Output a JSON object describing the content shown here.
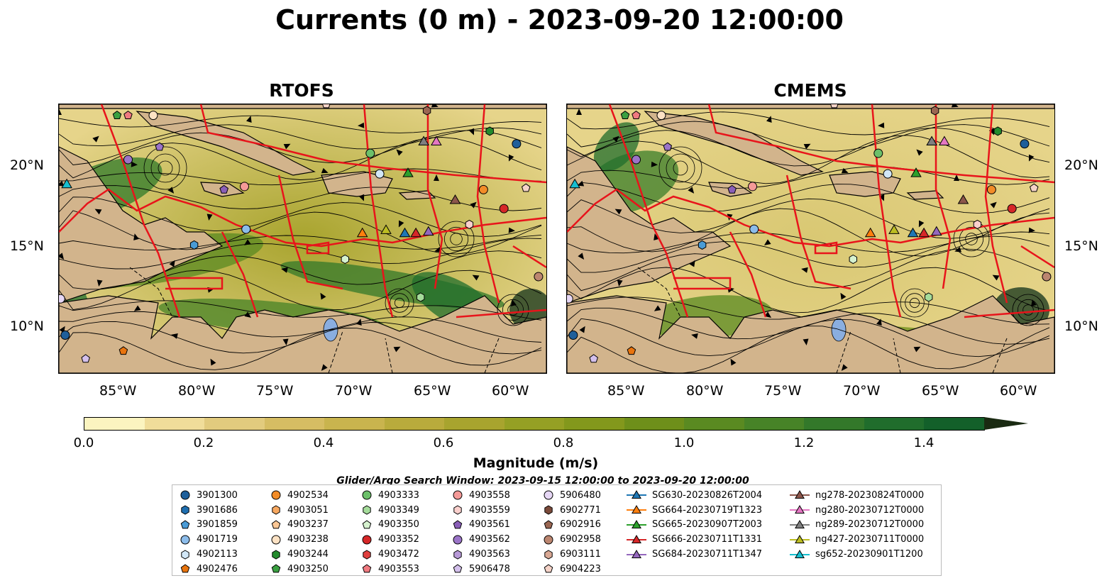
{
  "title": "Currents (0 m) - 2023-09-20 12:00:00",
  "panels": [
    {
      "title": "RTOFS"
    },
    {
      "title": "CMEMS"
    }
  ],
  "axes": {
    "lon_ticks": [
      "85°W",
      "80°W",
      "75°W",
      "70°W",
      "65°W",
      "60°W"
    ],
    "lat_ticks": [
      "20°N",
      "15°N",
      "10°N"
    ]
  },
  "colorbar": {
    "label": "Magnitude (m/s)",
    "ticks": [
      "0.0",
      "0.2",
      "0.4",
      "0.6",
      "0.8",
      "1.0",
      "1.2",
      "1.4"
    ],
    "range": [
      0,
      1.5
    ],
    "extend": "max",
    "colors": [
      "#fbf4c0",
      "#f0dd9a",
      "#e2cb7e",
      "#d6bd63",
      "#c9b44e",
      "#b9ab3c",
      "#a8a42e",
      "#95a024",
      "#83981c",
      "#6e8f1a",
      "#5a8a21",
      "#478327",
      "#33782a",
      "#206d2c",
      "#13602a",
      "#114f25",
      "#103f1f",
      "#12321a",
      "#1a2a12"
    ]
  },
  "search_window": "Glider/Argo Search Window: 2023-09-15 12:00:00 to 2023-09-20 12:00:00",
  "legend": {
    "columns": [
      [
        {
          "label": "3901300",
          "marker": "circle",
          "color": "#1f5f9a"
        },
        {
          "label": "3901686",
          "marker": "hexagon",
          "color": "#1f6fb0"
        },
        {
          "label": "3901859",
          "marker": "pentagon",
          "color": "#4a9bd6"
        },
        {
          "label": "4901719",
          "marker": "circle",
          "color": "#8cbcea"
        },
        {
          "label": "4902113",
          "marker": "hexagon",
          "color": "#d2e7f7"
        },
        {
          "label": "4902476",
          "marker": "pentagon",
          "color": "#e8740e"
        }
      ],
      [
        {
          "label": "4902534",
          "marker": "circle",
          "color": "#f28c28"
        },
        {
          "label": "4903051",
          "marker": "hexagon",
          "color": "#f7a860"
        },
        {
          "label": "4903237",
          "marker": "pentagon",
          "color": "#fbc795"
        },
        {
          "label": "4903238",
          "marker": "circle",
          "color": "#fde2c4"
        },
        {
          "label": "4903244",
          "marker": "hexagon",
          "color": "#238b2d"
        },
        {
          "label": "4903250",
          "marker": "pentagon",
          "color": "#3aa041"
        }
      ],
      [
        {
          "label": "4903333",
          "marker": "circle",
          "color": "#6cc06a"
        },
        {
          "label": "4903349",
          "marker": "hexagon",
          "color": "#a5dc9b"
        },
        {
          "label": "4903350",
          "marker": "pentagon",
          "color": "#d6f2cf"
        },
        {
          "label": "4903352",
          "marker": "circle",
          "color": "#d62728"
        },
        {
          "label": "4903472",
          "marker": "hexagon",
          "color": "#e0403f"
        },
        {
          "label": "4903553",
          "marker": "pentagon",
          "color": "#f07a80"
        }
      ],
      [
        {
          "label": "4903558",
          "marker": "circle",
          "color": "#f59a98"
        },
        {
          "label": "4903559",
          "marker": "hexagon",
          "color": "#fbd0cd"
        },
        {
          "label": "4903561",
          "marker": "pentagon",
          "color": "#8a5fb8"
        },
        {
          "label": "4903562",
          "marker": "circle",
          "color": "#9b74c8"
        },
        {
          "label": "4903563",
          "marker": "hexagon",
          "color": "#b89ad8"
        },
        {
          "label": "5906478",
          "marker": "pentagon",
          "color": "#d4c0ec"
        }
      ],
      [
        {
          "label": "5906480",
          "marker": "circle",
          "color": "#e6d7f5"
        },
        {
          "label": "6902771",
          "marker": "hexagon",
          "color": "#7b4a3a"
        },
        {
          "label": "6902916",
          "marker": "pentagon",
          "color": "#9a6652"
        },
        {
          "label": "6902958",
          "marker": "circle",
          "color": "#bc8670"
        },
        {
          "label": "6903111",
          "marker": "hexagon",
          "color": "#d9a894"
        },
        {
          "label": "6904223",
          "marker": "pentagon",
          "color": "#f5d3c8"
        }
      ],
      [
        {
          "label": "SG630-20230826T2004",
          "marker": "triangle-line",
          "color": "#1f77b4"
        },
        {
          "label": "SG664-20230719T1323",
          "marker": "triangle-line",
          "color": "#ff7f0e"
        },
        {
          "label": "SG665-20230907T2003",
          "marker": "triangle-line",
          "color": "#2ca02c"
        },
        {
          "label": "SG666-20230711T1331",
          "marker": "triangle-line",
          "color": "#d62728"
        },
        {
          "label": "SG684-20230711T1347",
          "marker": "triangle-line",
          "color": "#9467bd"
        }
      ],
      [
        {
          "label": "ng278-20230824T0000",
          "marker": "triangle-line",
          "color": "#8c564b"
        },
        {
          "label": "ng280-20230712T0000",
          "marker": "triangle-line",
          "color": "#e377c2"
        },
        {
          "label": "ng289-20230712T0000",
          "marker": "triangle-line",
          "color": "#7f7f7f"
        },
        {
          "label": "ng427-20230711T0000",
          "marker": "triangle-line",
          "color": "#bcbd22"
        },
        {
          "label": "sg652-20230901T1200",
          "marker": "triangle-line",
          "color": "#17becf"
        }
      ]
    ]
  },
  "map_data": {
    "extent": {
      "lon": [
        -89,
        -58
      ],
      "lat": [
        7,
        24
      ]
    },
    "markers": [
      {
        "type": "circle",
        "lon": -88.6,
        "lat": 9.4,
        "color": "#1f5f9a"
      },
      {
        "type": "circle",
        "lon": -88.9,
        "lat": 11.7,
        "color": "#e6d7f5"
      },
      {
        "type": "pentagon",
        "lon": -84.9,
        "lat": 8.4,
        "color": "#e8740e"
      },
      {
        "type": "pentagon",
        "lon": -87.3,
        "lat": 7.9,
        "color": "#d4c0ec"
      },
      {
        "type": "pentagon",
        "lon": -85.3,
        "lat": 23.3,
        "color": "#3aa041"
      },
      {
        "type": "pentagon",
        "lon": -84.6,
        "lat": 23.3,
        "color": "#f07a80"
      },
      {
        "type": "circle",
        "lon": -83.0,
        "lat": 23.3,
        "color": "#fde2c4"
      },
      {
        "type": "pentagon",
        "lon": -82.6,
        "lat": 21.3,
        "color": "#9b74c8"
      },
      {
        "type": "circle",
        "lon": -84.6,
        "lat": 20.5,
        "color": "#9b74c8"
      },
      {
        "type": "pentagon",
        "lon": -78.5,
        "lat": 18.6,
        "color": "#8a5fb8"
      },
      {
        "type": "circle",
        "lon": -77.2,
        "lat": 18.8,
        "color": "#f59a98"
      },
      {
        "type": "circle",
        "lon": -77.1,
        "lat": 16.1,
        "color": "#8cbcea"
      },
      {
        "type": "hexagon",
        "lon": -80.4,
        "lat": 15.1,
        "color": "#4a9bd6"
      },
      {
        "type": "circle",
        "lon": -69.2,
        "lat": 20.9,
        "color": "#6cc06a"
      },
      {
        "type": "circle",
        "lon": -68.6,
        "lat": 19.6,
        "color": "#d2e7f7"
      },
      {
        "type": "pentagon",
        "lon": -72.0,
        "lat": 24.0,
        "color": "#f5d3c8"
      },
      {
        "type": "hexagon",
        "lon": -65.6,
        "lat": 23.6,
        "color": "#9a6652"
      },
      {
        "type": "hexagon",
        "lon": -61.6,
        "lat": 22.3,
        "color": "#238b2d"
      },
      {
        "type": "circle",
        "lon": -59.9,
        "lat": 21.5,
        "color": "#1f5f9a"
      },
      {
        "type": "circle",
        "lon": -62.0,
        "lat": 18.6,
        "color": "#f28c28"
      },
      {
        "type": "circle",
        "lon": -60.7,
        "lat": 17.4,
        "color": "#d62728"
      },
      {
        "type": "pentagon",
        "lon": -59.3,
        "lat": 18.7,
        "color": "#f5d3c8"
      },
      {
        "type": "hexagon",
        "lon": -62.9,
        "lat": 16.4,
        "color": "#fbd0cd"
      },
      {
        "type": "circle",
        "lon": -58.5,
        "lat": 13.1,
        "color": "#bc8670"
      },
      {
        "type": "hexagon",
        "lon": -70.8,
        "lat": 14.2,
        "color": "#d6f2cf"
      },
      {
        "type": "hexagon",
        "lon": -66.0,
        "lat": 11.8,
        "color": "#a5dc9b"
      },
      {
        "type": "triangle",
        "lon": -65.8,
        "lat": 21.6,
        "color": "#7f7f7f"
      },
      {
        "type": "triangle",
        "lon": -65.0,
        "lat": 21.6,
        "color": "#e377c2"
      },
      {
        "type": "triangle",
        "lon": -66.8,
        "lat": 19.6,
        "color": "#2ca02c"
      },
      {
        "type": "triangle",
        "lon": -63.8,
        "lat": 17.9,
        "color": "#8c564b"
      },
      {
        "type": "triangle",
        "lon": -88.5,
        "lat": 18.9,
        "color": "#17becf"
      },
      {
        "type": "triangle",
        "lon": -69.7,
        "lat": 15.8,
        "color": "#ff7f0e"
      },
      {
        "type": "triangle",
        "lon": -68.2,
        "lat": 16.0,
        "color": "#bcbd22"
      },
      {
        "type": "triangle",
        "lon": -67.0,
        "lat": 15.8,
        "color": "#1f77b4"
      },
      {
        "type": "triangle",
        "lon": -66.3,
        "lat": 15.8,
        "color": "#d62728"
      },
      {
        "type": "triangle",
        "lon": -65.5,
        "lat": 15.9,
        "color": "#9467bd"
      }
    ]
  }
}
